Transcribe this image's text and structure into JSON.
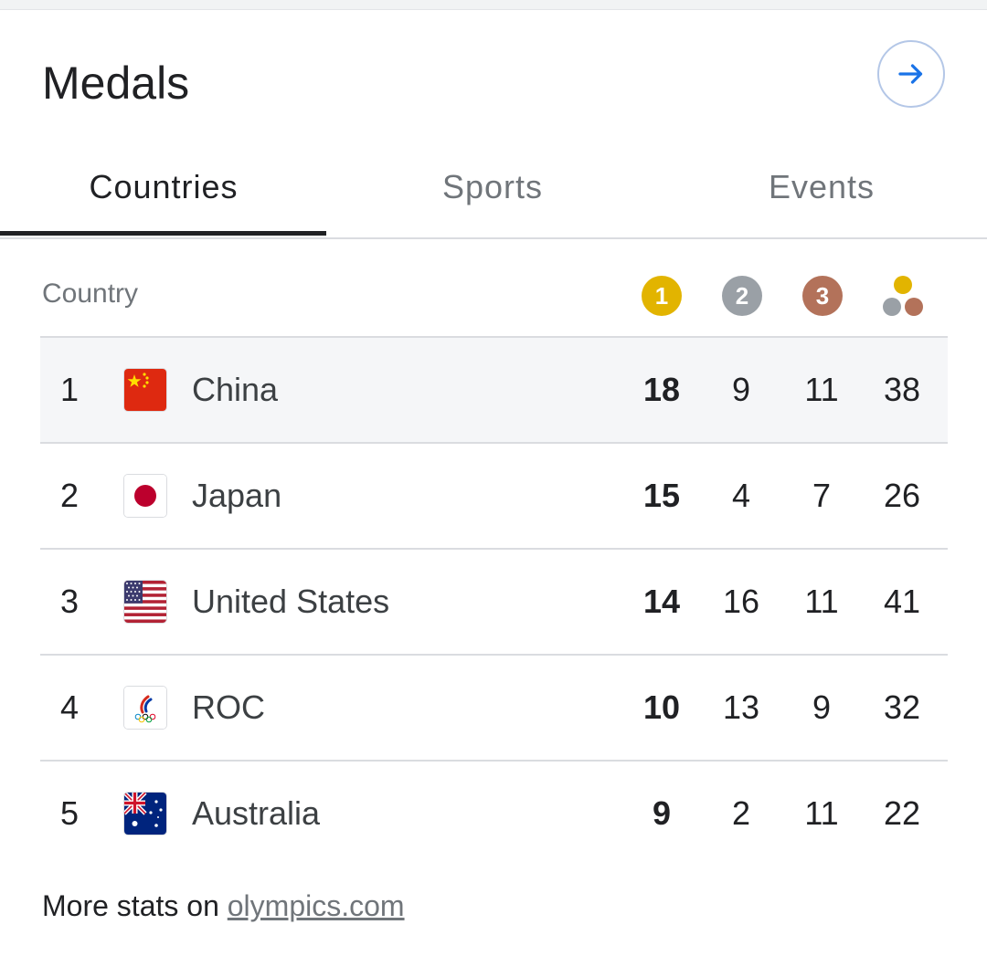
{
  "header": {
    "title": "Medals",
    "nav_icon": "arrow-right-icon",
    "accent_color": "#1a73e8"
  },
  "tabs": [
    {
      "label": "Countries",
      "active": true
    },
    {
      "label": "Sports",
      "active": false
    },
    {
      "label": "Events",
      "active": false
    }
  ],
  "table": {
    "country_header": "Country",
    "medal_headers": {
      "gold": "1",
      "silver": "2",
      "bronze": "3",
      "total_icon": "medals-total-icon"
    },
    "medal_colors": {
      "gold": "#e2b400",
      "silver": "#9aa0a6",
      "bronze": "#b3725a"
    },
    "rows": [
      {
        "rank": "1",
        "country": "China",
        "flag_icon": "china-flag-icon",
        "gold": "18",
        "silver": "9",
        "bronze": "11",
        "total": "38"
      },
      {
        "rank": "2",
        "country": "Japan",
        "flag_icon": "japan-flag-icon",
        "gold": "15",
        "silver": "4",
        "bronze": "7",
        "total": "26"
      },
      {
        "rank": "3",
        "country": "United States",
        "flag_icon": "usa-flag-icon",
        "gold": "14",
        "silver": "16",
        "bronze": "11",
        "total": "41"
      },
      {
        "rank": "4",
        "country": "ROC",
        "flag_icon": "roc-flag-icon",
        "gold": "10",
        "silver": "13",
        "bronze": "9",
        "total": "32"
      },
      {
        "rank": "5",
        "country": "Australia",
        "flag_icon": "australia-flag-icon",
        "gold": "9",
        "silver": "2",
        "bronze": "11",
        "total": "22"
      }
    ]
  },
  "footer": {
    "prefix": "More stats on ",
    "link_text": "olympics.com"
  }
}
